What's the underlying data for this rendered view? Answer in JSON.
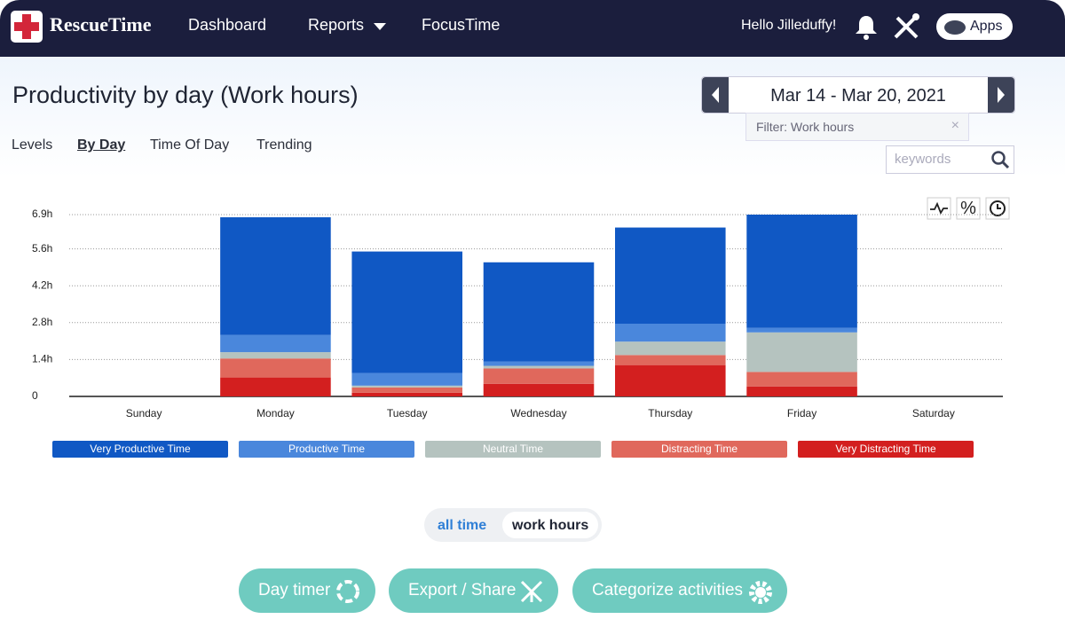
{
  "nav": {
    "logo": "RescueTime",
    "items": [
      "Dashboard",
      "Reports",
      "FocusTime"
    ],
    "greeting": "Hello Jilleduffy!",
    "apps": "Apps"
  },
  "header": {
    "title": "Productivity by day (Work hours)",
    "tabs": [
      "Levels",
      "By Day",
      "Time Of Day",
      "Trending"
    ],
    "date_range": "Mar 14 - Mar 20, 2021",
    "filter": "Filter: Work hours",
    "search_placeholder": "keywords"
  },
  "chart_data": {
    "type": "stacked_bar",
    "categories": [
      "Sunday",
      "Monday",
      "Tuesday",
      "Wednesday",
      "Thursday",
      "Friday",
      "Saturday"
    ],
    "series": [
      {
        "name": "Very Distracting Time",
        "color": "#d31f1f",
        "values": [
          0,
          0.72,
          0.14,
          0.48,
          1.19,
          0.38,
          0
        ]
      },
      {
        "name": "Distracting Time",
        "color": "#e0685c",
        "values": [
          0,
          0.72,
          0.2,
          0.58,
          0.38,
          0.55,
          0
        ]
      },
      {
        "name": "Neutral Time",
        "color": "#b5c3bf",
        "values": [
          0,
          0.24,
          0.07,
          0.1,
          0.51,
          1.5,
          0
        ]
      },
      {
        "name": "Productive Time",
        "color": "#4a87dc",
        "values": [
          0,
          0.65,
          0.48,
          0.17,
          0.68,
          0.17,
          0
        ]
      },
      {
        "name": "Very Productive Time",
        "color": "#1058c4",
        "values": [
          0,
          4.47,
          4.61,
          3.76,
          3.65,
          4.3,
          0
        ]
      }
    ],
    "legend_order": [
      4,
      3,
      2,
      1,
      0
    ],
    "ylim": [
      0,
      6.9
    ],
    "yticks": [
      0,
      {
        "value": 1.4,
        "label": "1.4h"
      },
      {
        "value": 2.8,
        "label": "2.8h"
      },
      {
        "value": 4.2,
        "label": "4.2h"
      },
      {
        "value": 5.6,
        "label": "5.6h"
      },
      {
        "value": 6.9,
        "label": "6.9h"
      }
    ],
    "grid": true
  },
  "toggle": [
    "all time",
    "work hours"
  ],
  "buttons": [
    "Day timer",
    "Export / Share",
    "Categorize activities"
  ]
}
